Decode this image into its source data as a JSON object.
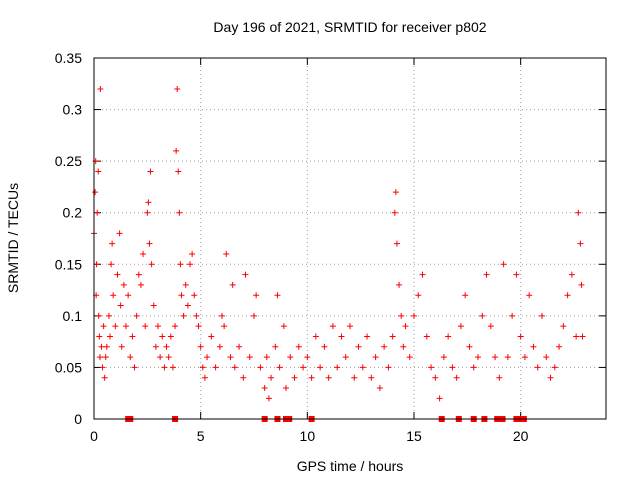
{
  "chart_data": {
    "type": "scatter",
    "title": "Day 196 of 2021, SRMTID for receiver p802",
    "xlabel": "GPS time / hours",
    "ylabel": "SRMTID / TECUs",
    "xlim": [
      0,
      24
    ],
    "ylim": [
      0,
      0.35
    ],
    "grid": true,
    "marker": "+",
    "color": "#ff0000",
    "x_ticks": [
      0,
      5,
      10,
      15,
      20
    ],
    "x_tick_labels": [
      "0",
      "5",
      "10",
      "15",
      "20"
    ],
    "y_ticks": [
      0,
      0.05,
      0.1,
      0.15,
      0.2,
      0.25,
      0.3,
      0.35
    ],
    "y_tick_labels": [
      "0",
      "0.05",
      "0.1",
      "0.15",
      "0.2",
      "0.25",
      "0.3",
      "0.35"
    ],
    "series": [
      {
        "name": "SRMTID",
        "points": [
          [
            0.0,
            0.18
          ],
          [
            0.05,
            0.22
          ],
          [
            0.08,
            0.25
          ],
          [
            0.1,
            0.12
          ],
          [
            0.12,
            0.15
          ],
          [
            0.15,
            0.2
          ],
          [
            0.2,
            0.24
          ],
          [
            0.22,
            0.1
          ],
          [
            0.25,
            0.08
          ],
          [
            0.28,
            0.06
          ],
          [
            0.3,
            0.32
          ],
          [
            0.35,
            0.07
          ],
          [
            0.4,
            0.05
          ],
          [
            0.45,
            0.09
          ],
          [
            0.5,
            0.04
          ],
          [
            0.55,
            0.06
          ],
          [
            0.6,
            0.07
          ],
          [
            0.7,
            0.1
          ],
          [
            0.75,
            0.08
          ],
          [
            0.8,
            0.15
          ],
          [
            0.85,
            0.17
          ],
          [
            0.9,
            0.12
          ],
          [
            1.0,
            0.09
          ],
          [
            1.1,
            0.14
          ],
          [
            1.2,
            0.18
          ],
          [
            1.25,
            0.11
          ],
          [
            1.3,
            0.07
          ],
          [
            1.4,
            0.13
          ],
          [
            1.5,
            0.09
          ],
          [
            1.6,
            0.12
          ],
          [
            1.7,
            0.06
          ],
          [
            1.8,
            0.08
          ],
          [
            1.9,
            0.05
          ],
          [
            2.0,
            0.1
          ],
          [
            2.1,
            0.14
          ],
          [
            2.2,
            0.13
          ],
          [
            2.3,
            0.16
          ],
          [
            2.4,
            0.09
          ],
          [
            2.5,
            0.2
          ],
          [
            2.55,
            0.21
          ],
          [
            2.6,
            0.17
          ],
          [
            2.65,
            0.24
          ],
          [
            2.7,
            0.15
          ],
          [
            2.8,
            0.11
          ],
          [
            2.9,
            0.07
          ],
          [
            3.0,
            0.09
          ],
          [
            3.1,
            0.06
          ],
          [
            3.2,
            0.08
          ],
          [
            3.3,
            0.05
          ],
          [
            3.4,
            0.07
          ],
          [
            3.5,
            0.06
          ],
          [
            3.6,
            0.08
          ],
          [
            3.7,
            0.05
          ],
          [
            3.8,
            0.09
          ],
          [
            3.85,
            0.26
          ],
          [
            3.9,
            0.32
          ],
          [
            3.95,
            0.24
          ],
          [
            4.0,
            0.2
          ],
          [
            4.05,
            0.15
          ],
          [
            4.1,
            0.12
          ],
          [
            4.2,
            0.1
          ],
          [
            4.3,
            0.13
          ],
          [
            4.4,
            0.11
          ],
          [
            4.5,
            0.15
          ],
          [
            4.6,
            0.16
          ],
          [
            4.7,
            0.12
          ],
          [
            4.8,
            0.1
          ],
          [
            4.9,
            0.09
          ],
          [
            5.0,
            0.07
          ],
          [
            5.1,
            0.05
          ],
          [
            5.2,
            0.04
          ],
          [
            5.3,
            0.06
          ],
          [
            5.5,
            0.08
          ],
          [
            5.7,
            0.05
          ],
          [
            5.9,
            0.07
          ],
          [
            6.0,
            0.1
          ],
          [
            6.1,
            0.09
          ],
          [
            6.2,
            0.16
          ],
          [
            6.4,
            0.06
          ],
          [
            6.5,
            0.13
          ],
          [
            6.6,
            0.05
          ],
          [
            6.8,
            0.07
          ],
          [
            7.0,
            0.04
          ],
          [
            7.1,
            0.14
          ],
          [
            7.3,
            0.06
          ],
          [
            7.5,
            0.1
          ],
          [
            7.6,
            0.12
          ],
          [
            7.8,
            0.05
          ],
          [
            8.0,
            0.03
          ],
          [
            8.1,
            0.06
          ],
          [
            8.2,
            0.02
          ],
          [
            8.3,
            0.04
          ],
          [
            8.5,
            0.07
          ],
          [
            8.6,
            0.12
          ],
          [
            8.7,
            0.05
          ],
          [
            8.9,
            0.09
          ],
          [
            9.0,
            0.03
          ],
          [
            9.2,
            0.06
          ],
          [
            9.4,
            0.04
          ],
          [
            9.6,
            0.07
          ],
          [
            9.8,
            0.05
          ],
          [
            10.0,
            0.06
          ],
          [
            10.2,
            0.04
          ],
          [
            10.4,
            0.08
          ],
          [
            10.6,
            0.05
          ],
          [
            10.8,
            0.07
          ],
          [
            11.0,
            0.04
          ],
          [
            11.2,
            0.09
          ],
          [
            11.4,
            0.05
          ],
          [
            11.6,
            0.08
          ],
          [
            11.8,
            0.06
          ],
          [
            12.0,
            0.09
          ],
          [
            12.2,
            0.04
          ],
          [
            12.4,
            0.07
          ],
          [
            12.6,
            0.05
          ],
          [
            12.8,
            0.08
          ],
          [
            13.0,
            0.04
          ],
          [
            13.2,
            0.06
          ],
          [
            13.4,
            0.03
          ],
          [
            13.6,
            0.07
          ],
          [
            13.8,
            0.05
          ],
          [
            14.0,
            0.08
          ],
          [
            14.1,
            0.2
          ],
          [
            14.15,
            0.22
          ],
          [
            14.2,
            0.17
          ],
          [
            14.3,
            0.13
          ],
          [
            14.4,
            0.1
          ],
          [
            14.5,
            0.07
          ],
          [
            14.6,
            0.09
          ],
          [
            14.8,
            0.06
          ],
          [
            15.0,
            0.1
          ],
          [
            15.2,
            0.12
          ],
          [
            15.4,
            0.14
          ],
          [
            15.6,
            0.08
          ],
          [
            15.8,
            0.05
          ],
          [
            16.0,
            0.04
          ],
          [
            16.2,
            0.02
          ],
          [
            16.4,
            0.06
          ],
          [
            16.6,
            0.08
          ],
          [
            16.8,
            0.05
          ],
          [
            17.0,
            0.04
          ],
          [
            17.2,
            0.09
          ],
          [
            17.4,
            0.12
          ],
          [
            17.6,
            0.07
          ],
          [
            17.8,
            0.05
          ],
          [
            18.0,
            0.06
          ],
          [
            18.2,
            0.1
          ],
          [
            18.4,
            0.14
          ],
          [
            18.6,
            0.09
          ],
          [
            18.8,
            0.06
          ],
          [
            19.0,
            0.04
          ],
          [
            19.2,
            0.15
          ],
          [
            19.4,
            0.06
          ],
          [
            19.6,
            0.1
          ],
          [
            19.8,
            0.14
          ],
          [
            20.0,
            0.08
          ],
          [
            20.2,
            0.06
          ],
          [
            20.4,
            0.12
          ],
          [
            20.6,
            0.07
          ],
          [
            20.8,
            0.05
          ],
          [
            21.0,
            0.1
          ],
          [
            21.2,
            0.06
          ],
          [
            21.4,
            0.04
          ],
          [
            21.6,
            0.05
          ],
          [
            21.8,
            0.07
          ],
          [
            22.0,
            0.09
          ],
          [
            22.2,
            0.12
          ],
          [
            22.4,
            0.14
          ],
          [
            22.6,
            0.08
          ],
          [
            22.7,
            0.2
          ],
          [
            22.8,
            0.17
          ],
          [
            22.85,
            0.13
          ],
          [
            22.9,
            0.08
          ]
        ]
      }
    ],
    "gap_markers_x": [
      1.6,
      1.7,
      3.8,
      8.0,
      8.6,
      9.0,
      9.15,
      10.2,
      16.3,
      17.1,
      17.8,
      18.3,
      18.9,
      19.0,
      19.15,
      19.8,
      19.9,
      20.15
    ]
  }
}
